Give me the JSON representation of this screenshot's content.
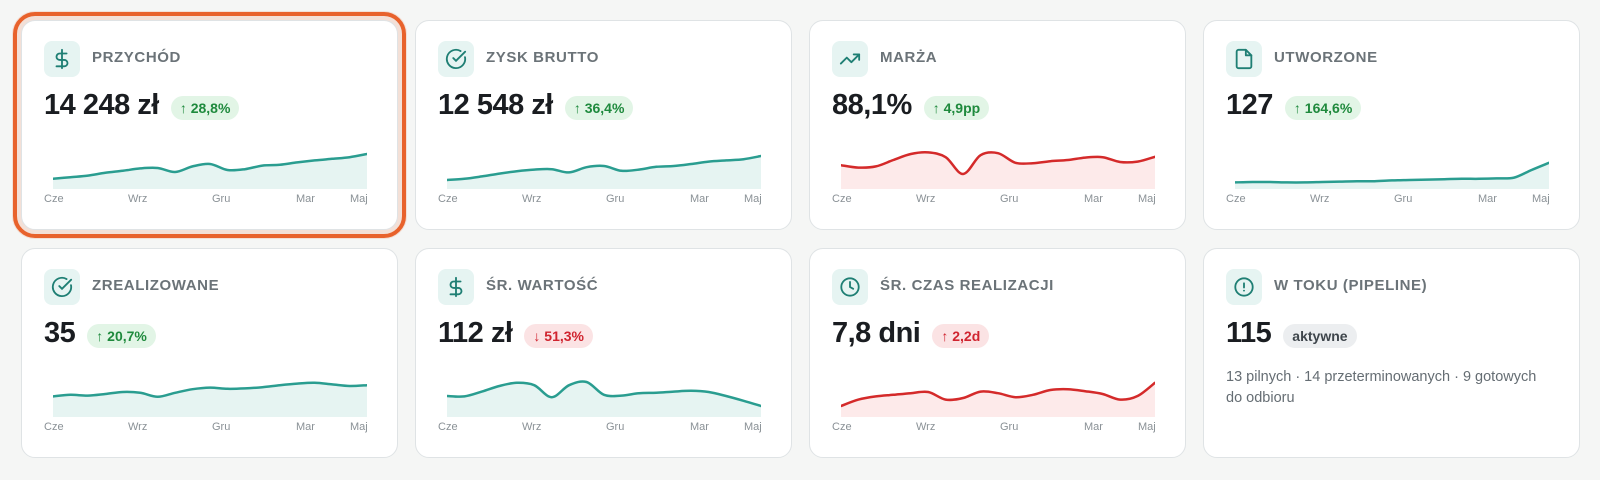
{
  "colors": {
    "teal": "#2a9d90",
    "teal_fill": "#e6f4f2",
    "red": "#d42a2a",
    "red_fill": "#fdeaea",
    "selection": "#e8622c"
  },
  "cards": [
    {
      "label": "PRZYCHÓD",
      "value": "14 248 zł",
      "badge": "↑ 28,8%",
      "badge_type": "up",
      "icon": "dollar-icon",
      "trend": "up",
      "months": [
        "Cze",
        "Wrz",
        "Gru",
        "Mar",
        "Maj"
      ],
      "spark": [
        0.18,
        0.22,
        0.26,
        0.33,
        0.38,
        0.44,
        0.45,
        0.35,
        0.49,
        0.55,
        0.4,
        0.42,
        0.51,
        0.53,
        0.59,
        0.64,
        0.68,
        0.72,
        0.8
      ],
      "spark_color": "teal"
    },
    {
      "label": "ZYSK BRUTTO",
      "value": "12 548 zł",
      "badge": "↑ 36,4%",
      "badge_type": "up",
      "icon": "check-circle-icon",
      "trend": "up",
      "months": [
        "Cze",
        "Wrz",
        "Gru",
        "Mar",
        "Maj"
      ],
      "spark": [
        0.15,
        0.18,
        0.24,
        0.31,
        0.37,
        0.41,
        0.42,
        0.34,
        0.47,
        0.5,
        0.38,
        0.41,
        0.48,
        0.5,
        0.55,
        0.61,
        0.64,
        0.67,
        0.75
      ],
      "spark_color": "teal"
    },
    {
      "label": "MARŻA",
      "value": "88,1%",
      "badge": "↑ 4,9pp",
      "badge_type": "up",
      "icon": "trending-up-icon",
      "trend": "red",
      "months": [
        "Cze",
        "Wrz",
        "Gru",
        "Mar",
        "Maj"
      ],
      "spark": [
        0.52,
        0.46,
        0.49,
        0.65,
        0.8,
        0.84,
        0.72,
        0.3,
        0.77,
        0.82,
        0.58,
        0.57,
        0.62,
        0.65,
        0.71,
        0.72,
        0.6,
        0.61,
        0.73
      ],
      "spark_color": "red"
    },
    {
      "label": "UTWORZONE",
      "value": "127",
      "badge": "↑ 164,6%",
      "badge_type": "up",
      "icon": "document-icon",
      "trend": "up",
      "months": [
        "Cze",
        "Wrz",
        "Gru",
        "Mar",
        "Maj"
      ],
      "spark": [
        0.09,
        0.1,
        0.1,
        0.09,
        0.09,
        0.1,
        0.11,
        0.12,
        0.12,
        0.14,
        0.15,
        0.16,
        0.17,
        0.18,
        0.18,
        0.19,
        0.21,
        0.4,
        0.58
      ],
      "spark_color": "teal"
    },
    {
      "label": "ZREALIZOWANE",
      "value": "35",
      "badge": "↑ 20,7%",
      "badge_type": "up",
      "icon": "check-circle-icon",
      "trend": "up",
      "months": [
        "Cze",
        "Wrz",
        "Gru",
        "Mar",
        "Maj"
      ],
      "spark": [
        0.44,
        0.48,
        0.46,
        0.5,
        0.55,
        0.53,
        0.43,
        0.53,
        0.62,
        0.66,
        0.63,
        0.64,
        0.67,
        0.72,
        0.76,
        0.78,
        0.74,
        0.7,
        0.72
      ],
      "spark_color": "teal"
    },
    {
      "label": "ŚR. WARTOŚĆ",
      "value": "112 zł",
      "badge": "↓ 51,3%",
      "badge_type": "down",
      "icon": "dollar-icon",
      "trend": "down",
      "months": [
        "Cze",
        "Wrz",
        "Gru",
        "Mar",
        "Maj"
      ],
      "spark": [
        0.45,
        0.44,
        0.56,
        0.7,
        0.78,
        0.72,
        0.42,
        0.72,
        0.8,
        0.48,
        0.46,
        0.52,
        0.53,
        0.56,
        0.58,
        0.55,
        0.45,
        0.33,
        0.2
      ],
      "spark_color": "teal"
    },
    {
      "label": "ŚR. CZAS REALIZACJI",
      "value": "7,8 dni",
      "badge": "↑ 2,2d",
      "badge_type": "down",
      "icon": "clock-icon",
      "trend": "red",
      "months": [
        "Cze",
        "Wrz",
        "Gru",
        "Mar",
        "Maj"
      ],
      "spark": [
        0.2,
        0.36,
        0.44,
        0.48,
        0.52,
        0.55,
        0.36,
        0.4,
        0.56,
        0.52,
        0.42,
        0.48,
        0.6,
        0.62,
        0.57,
        0.5,
        0.36,
        0.45,
        0.78
      ],
      "spark_color": "red"
    }
  ],
  "pipeline": {
    "label": "W TOKU (PIPELINE)",
    "value": "115",
    "badge": "aktywne",
    "icon": "alert-circle-icon",
    "description": "13 pilnych · 14 przeterminowanych · 9 gotowych do odbioru"
  }
}
